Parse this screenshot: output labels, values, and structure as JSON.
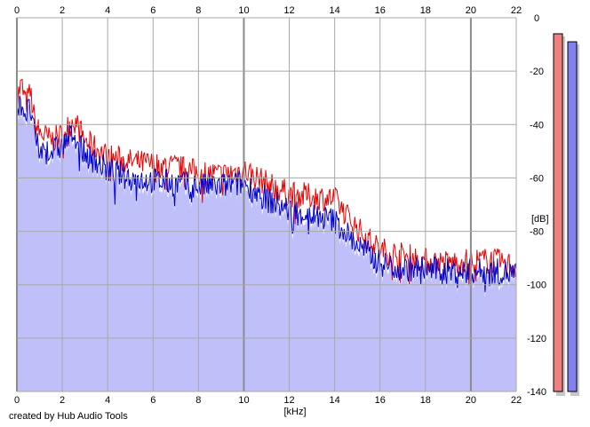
{
  "app": {
    "credit": "created by Hub Audio Tools"
  },
  "colors": {
    "plot_bg": "#ffffff",
    "fill": "#bfbff9",
    "left_channel": "#ee0000",
    "right_channel": "#0000cc",
    "grid": "#a8a8a8",
    "grid_major": "#8c8c8c",
    "meter_left": "#f08080",
    "meter_right": "#8080f0"
  },
  "chart_data": {
    "type": "area",
    "title": "",
    "xlabel": "[kHz]",
    "ylabel": "[dB]",
    "xlim": [
      0,
      22
    ],
    "ylim": [
      -140,
      0
    ],
    "x_ticks": [
      "0",
      "2",
      "4",
      "6",
      "8",
      "10",
      "12",
      "14",
      "16",
      "18",
      "20",
      "22"
    ],
    "y_ticks": [
      "0",
      "-20",
      "-40",
      "-60",
      "-80",
      "-100",
      "-120",
      "-140"
    ],
    "grid": true,
    "series": [
      {
        "channel": "left",
        "x": [
          0,
          0.2,
          0.4,
          0.6,
          0.8,
          1,
          1.5,
          2,
          2.5,
          3,
          4,
          5,
          6,
          7,
          8,
          9,
          10,
          11,
          12,
          13,
          14,
          15,
          16,
          17,
          18,
          19,
          20,
          21,
          22
        ],
        "values": [
          -30,
          -25,
          -32,
          -28,
          -40,
          -43,
          -46,
          -44,
          -38,
          -46,
          -52,
          -54,
          -55,
          -56,
          -58,
          -59,
          -57,
          -62,
          -66,
          -67,
          -68,
          -79,
          -87,
          -89,
          -91,
          -92,
          -91,
          -91,
          -93
        ]
      },
      {
        "channel": "right",
        "x": [
          0,
          0.2,
          0.4,
          0.6,
          0.8,
          1,
          1.5,
          2,
          2.5,
          3,
          4,
          5,
          6,
          7,
          8,
          9,
          10,
          11,
          12,
          13,
          14,
          15,
          16,
          17,
          18,
          19,
          20,
          21,
          22
        ],
        "values": [
          -35,
          -32,
          -36,
          -34,
          -46,
          -50,
          -50,
          -48,
          -43,
          -51,
          -57,
          -60,
          -61,
          -62,
          -63,
          -63,
          -62,
          -68,
          -72,
          -74,
          -76,
          -85,
          -92,
          -94,
          -94,
          -95,
          -95,
          -95,
          -96
        ]
      }
    ],
    "level_meters": [
      {
        "channel": "left",
        "level_db": -6
      },
      {
        "channel": "right",
        "level_db": -9
      }
    ]
  }
}
